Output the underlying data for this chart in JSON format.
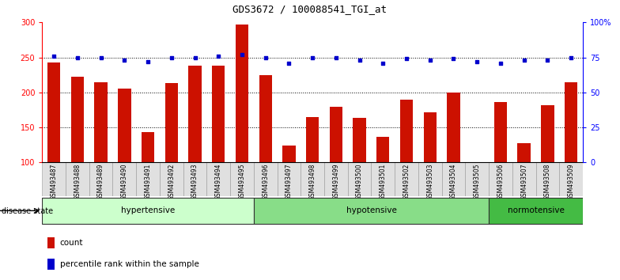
{
  "title": "GDS3672 / 100088541_TGI_at",
  "samples": [
    "GSM493487",
    "GSM493488",
    "GSM493489",
    "GSM493490",
    "GSM493491",
    "GSM493492",
    "GSM493493",
    "GSM493494",
    "GSM493495",
    "GSM493496",
    "GSM493497",
    "GSM493498",
    "GSM493499",
    "GSM493500",
    "GSM493501",
    "GSM493502",
    "GSM493503",
    "GSM493504",
    "GSM493505",
    "GSM493506",
    "GSM493507",
    "GSM493508",
    "GSM493509"
  ],
  "counts": [
    243,
    222,
    215,
    205,
    143,
    213,
    238,
    238,
    297,
    225,
    124,
    165,
    179,
    164,
    137,
    190,
    172,
    200,
    100,
    186,
    128,
    182,
    215
  ],
  "percentiles": [
    76,
    75,
    75,
    73,
    72,
    75,
    75,
    76,
    77,
    75,
    71,
    75,
    75,
    73,
    71,
    74,
    73,
    74,
    72,
    71,
    73,
    73,
    75
  ],
  "groups": [
    {
      "label": "hypertensive",
      "start": 0,
      "end": 9,
      "color": "#ccffcc"
    },
    {
      "label": "hypotensive",
      "start": 9,
      "end": 19,
      "color": "#88dd88"
    },
    {
      "label": "normotensive",
      "start": 19,
      "end": 23,
      "color": "#44bb44"
    }
  ],
  "bar_color": "#cc1100",
  "dot_color": "#0000cc",
  "bar_baseline": 100,
  "ylim_left": [
    100,
    300
  ],
  "ylim_right": [
    0,
    100
  ],
  "yticks_left": [
    100,
    150,
    200,
    250,
    300
  ],
  "yticks_right": [
    0,
    25,
    50,
    75,
    100
  ],
  "ytick_labels_right": [
    "0",
    "25",
    "50",
    "75",
    "100%"
  ],
  "grid_values": [
    150,
    200,
    250
  ],
  "background_color": "#ffffff"
}
